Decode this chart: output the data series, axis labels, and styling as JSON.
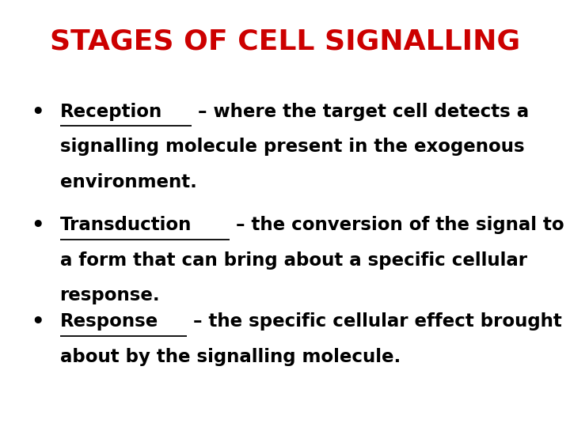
{
  "title": "STAGES OF CELL SIGNALLING",
  "title_color": "#cc0000",
  "title_fontsize": 26,
  "background_color": "#ffffff",
  "text_color": "#000000",
  "bullets": [
    {
      "keyword": "Reception",
      "lines": [
        " – where the target cell detects a",
        "signalling molecule present in the exogenous",
        "environment."
      ]
    },
    {
      "keyword": "Transduction",
      "lines": [
        " – the conversion of the signal to",
        "a form that can bring about a specific cellular",
        "response."
      ]
    },
    {
      "keyword": "Response",
      "lines": [
        " – the specific cellular effect brought",
        "about by the signalling molecule."
      ]
    }
  ],
  "bullet_fontsize": 16.5,
  "bullet_symbol": "•",
  "fig_width": 7.2,
  "fig_height": 5.4,
  "dpi": 100
}
